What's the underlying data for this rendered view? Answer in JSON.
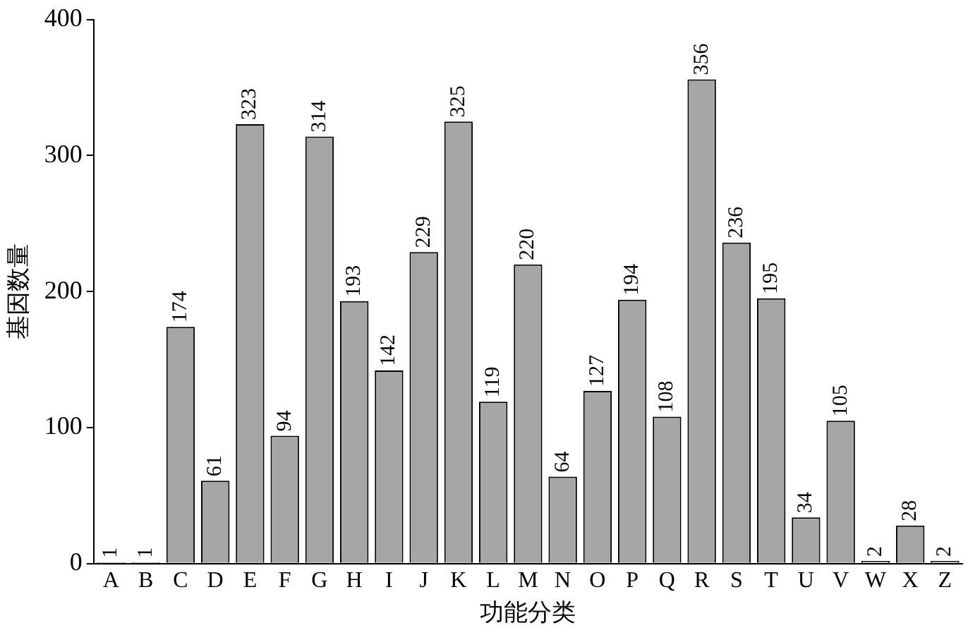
{
  "chart_data": {
    "type": "bar",
    "xlabel": "功能分类",
    "ylabel": "基因数量",
    "categories": [
      "A",
      "B",
      "C",
      "D",
      "E",
      "F",
      "G",
      "H",
      "I",
      "J",
      "K",
      "L",
      "M",
      "N",
      "O",
      "P",
      "Q",
      "R",
      "S",
      "T",
      "U",
      "V",
      "W",
      "X",
      "Z"
    ],
    "values": [
      1,
      1,
      174,
      61,
      323,
      94,
      314,
      193,
      142,
      229,
      325,
      119,
      220,
      64,
      127,
      194,
      108,
      356,
      236,
      195,
      34,
      105,
      2,
      28,
      2
    ],
    "color": "#a6a6a6",
    "ylim": [
      0,
      400
    ],
    "yticks": [
      0,
      100,
      200,
      300,
      400
    ],
    "grid": false,
    "data_labels": true
  }
}
